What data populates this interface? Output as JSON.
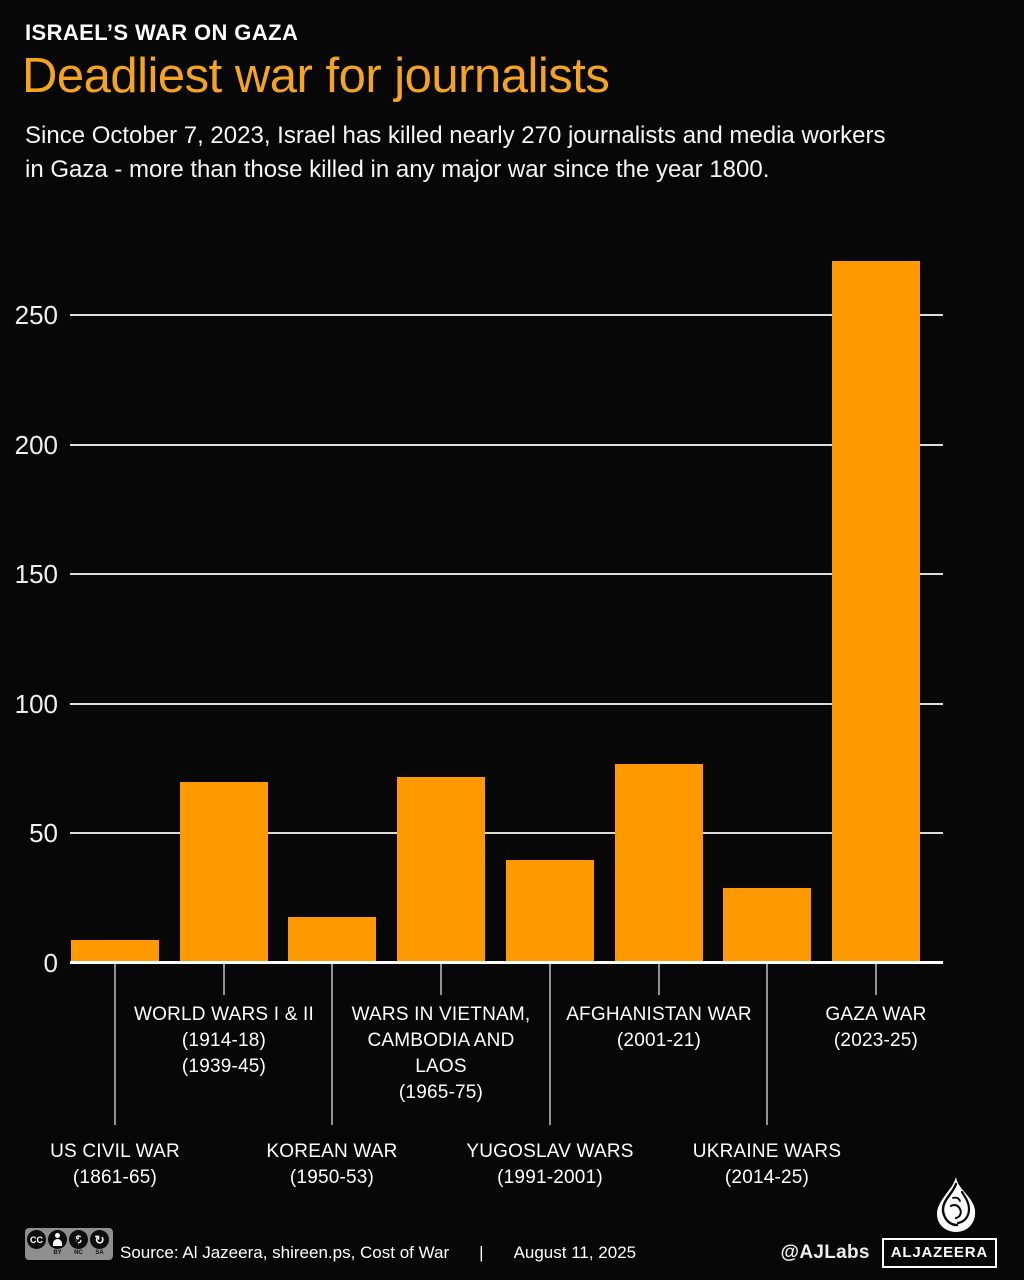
{
  "header": {
    "kicker": "ISRAEL’S WAR ON GAZA",
    "title": "Deadliest war for journalists",
    "description": [
      "Since October 7, 2023, Israel has killed nearly 270 journalists and media workers",
      "in Gaza - more than those killed in any major war since the year 1800."
    ]
  },
  "colors": {
    "bar_orange": "#ff9900",
    "title_orange": "#f4a41d",
    "gridline": "#dcdcdc",
    "leader_line": "#929292"
  },
  "chart_data": {
    "type": "bar",
    "title": "Deadliest war for journalists",
    "xlabel": "",
    "ylabel": "",
    "ylim": [
      0,
      280
    ],
    "yticks": [
      0,
      50,
      100,
      150,
      200,
      250
    ],
    "grid": "horizontal gridlines on",
    "legend": "none",
    "bar_color": "#ff9900",
    "categories": [
      [
        "US CIVIL WAR",
        "(1861-65)"
      ],
      [
        "WORLD WARS I & II",
        "(1914-18)",
        "(1939-45)"
      ],
      [
        "KOREAN WAR",
        "(1950-53)"
      ],
      [
        "WARS IN VIETNAM,",
        "CAMBODIA AND",
        "LAOS",
        "(1965-75)"
      ],
      [
        "YUGOSLAV WARS",
        "(1991-2001)"
      ],
      [
        "AFGHANISTAN WAR",
        "(2001-21)"
      ],
      [
        "UKRAINE WARS",
        "(2014-25)"
      ],
      [
        "GAZA WAR",
        "(2023-25)"
      ]
    ],
    "values": [
      8,
      69,
      17,
      71,
      39,
      76,
      28,
      270
    ]
  },
  "footer": {
    "cc": {
      "cc_label": "CC",
      "sub_labels": [
        "BY",
        "NC",
        "SA"
      ]
    },
    "source": "Source:  Al Jazeera, shireen.ps, Cost of War",
    "separator": "|",
    "date": "August 11, 2025",
    "handle": "@AJLabs",
    "brand": "ALJAZEERA"
  }
}
